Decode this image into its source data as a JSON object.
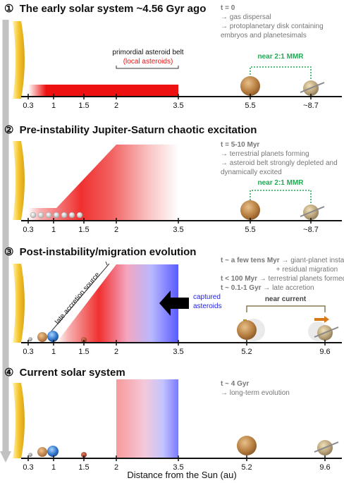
{
  "panels": [
    {
      "number": "①",
      "title": "The early solar system ~4.56 Gyr ago",
      "notes": [
        {
          "bold": "t = 0",
          "text": ""
        },
        {
          "bold": "",
          "text": "→ gas dispersal"
        },
        {
          "bold": "",
          "text": "→ protoplanetary disk containing"
        },
        {
          "bold": "",
          "text": "    embryos and planetesimals"
        }
      ],
      "belt_label": "primordial asteroid belt",
      "belt_sublabel": "(local asteroids)",
      "mmr_label": "near 2:1 MMR",
      "ticks": [
        "0.3",
        "1",
        "1.5",
        "2",
        "3.5",
        "5.5",
        "~8.7"
      ]
    },
    {
      "number": "②",
      "title": "Pre-instability Jupiter-Saturn chaotic excitation",
      "notes": [
        {
          "bold": "t = 5-10 Myr",
          "text": ""
        },
        {
          "bold": "",
          "text": "→ terrestrial planets forming"
        },
        {
          "bold": "",
          "text": "→ asteroid belt strongly depleted and"
        },
        {
          "bold": "",
          "text": "    dynamically excited"
        }
      ],
      "mmr_label": "near 2:1 MMR",
      "ticks": [
        "0.3",
        "1",
        "1.5",
        "2",
        "3.5",
        "5.5",
        "~8.7"
      ]
    },
    {
      "number": "③",
      "title": "Post-instability/migration evolution",
      "notes": [
        {
          "bold": "t ~ a few tens Myr",
          "text": " → giant-planet instability"
        },
        {
          "bold": "",
          "text": "+ residual migration"
        },
        {
          "bold": "t < 100 Myr",
          "text": " → terrestrial planets formed"
        },
        {
          "bold": "t ~ 0.1-1 Gyr",
          "text": " → late accretion"
        }
      ],
      "late_label": "late accretion source",
      "captured_label": "captured asteroids",
      "near_current_label": "near current",
      "ticks": [
        "0.3",
        "1",
        "1.5",
        "2",
        "3.5",
        "5.2",
        "9.6"
      ]
    },
    {
      "number": "④",
      "title": "Current solar system",
      "notes": [
        {
          "bold": "t ~ 4 Gyr",
          "text": ""
        },
        {
          "bold": "",
          "text": "→ long-term evolution"
        }
      ],
      "ticks": [
        "0.3",
        "1",
        "1.5",
        "2",
        "3.5",
        "5.2",
        "9.6"
      ]
    }
  ],
  "x_axis_label": "Distance from the Sun (au)",
  "colors": {
    "belt": "#ee1111",
    "captured": "#5a5aff",
    "mmr": "#22aa55",
    "sun": "#f2be22",
    "arrow": "#c2c2c2",
    "note_text": "#777777",
    "near_current_box": "#8a7a52"
  }
}
